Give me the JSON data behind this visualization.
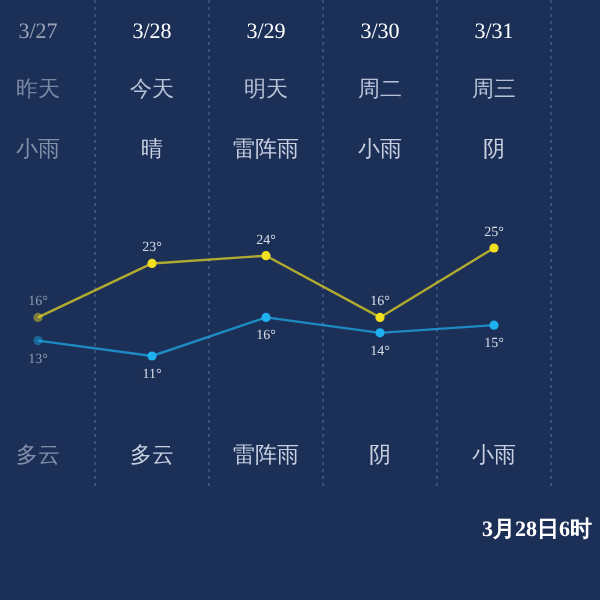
{
  "chart_data": {
    "type": "line",
    "categories": [
      "3/27",
      "3/28",
      "3/29",
      "3/30",
      "3/31"
    ],
    "series": [
      {
        "color": "#f0e020",
        "values": [
          16,
          23,
          24,
          16,
          25
        ],
        "value_labels": [
          "16°",
          "23°",
          "24°",
          "16°",
          "25°"
        ]
      },
      {
        "color": "#1fb0f0",
        "values": [
          13,
          11,
          16,
          14,
          15
        ],
        "value_labels": [
          "13°",
          "11°",
          "16°",
          "14°",
          "15°"
        ]
      }
    ],
    "marker": "circle",
    "annotations": [
      "昨天",
      "今天",
      "明天",
      "周二",
      "周三",
      "小雨",
      "晴",
      "雷阵雨",
      "小雨",
      "阴",
      "多云",
      "多云",
      "雷阵雨",
      "阴",
      "小雨",
      "3月28日6时"
    ]
  }
}
